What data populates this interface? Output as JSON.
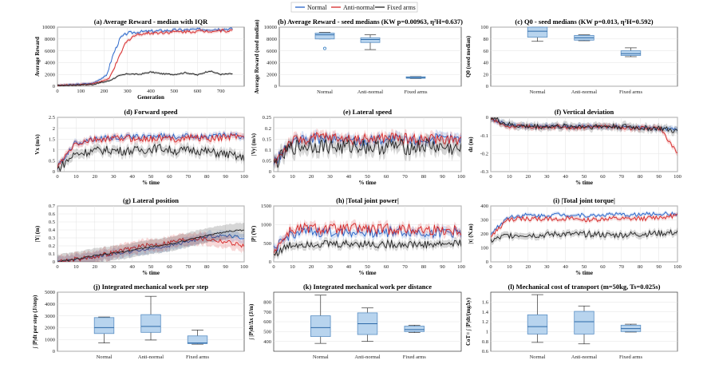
{
  "legend": {
    "items": [
      {
        "name": "Normal",
        "color": "#2563c9"
      },
      {
        "name": "Anti-normal",
        "color": "#d62828"
      },
      {
        "name": "Fixed arms",
        "color": "#222222"
      }
    ]
  },
  "chart_data": [
    {
      "id": "a",
      "type": "line",
      "title": "(a) Average Reward - median with IQR",
      "xlabel": "Generation",
      "ylabel": "Average Reward",
      "xlim": [
        0,
        800
      ],
      "ylim": [
        0,
        10000
      ],
      "xticks": [
        0,
        100,
        200,
        300,
        400,
        500,
        600,
        700
      ],
      "yticks": [
        0,
        2000,
        4000,
        6000,
        8000,
        10000
      ],
      "yticklabels": [
        "0",
        "2000",
        "4000",
        "6000",
        "8000",
        "10000"
      ],
      "series": [
        {
          "name": "Normal",
          "color": "#2563c9",
          "x": [
            0,
            150,
            210,
            240,
            270,
            300,
            350,
            400,
            500,
            600,
            700,
            750
          ],
          "y": [
            100,
            500,
            1800,
            5500,
            8200,
            9000,
            9200,
            9300,
            9500,
            9600,
            9700,
            9700
          ],
          "iqr": 500
        },
        {
          "name": "Anti-normal",
          "color": "#d62828",
          "x": [
            0,
            150,
            220,
            260,
            290,
            320,
            360,
            400,
            500,
            600,
            700,
            750
          ],
          "y": [
            100,
            400,
            1200,
            4500,
            7200,
            8400,
            8900,
            9000,
            9200,
            9300,
            9400,
            9400
          ],
          "iqr": 600
        },
        {
          "name": "Fixed arms",
          "color": "#222222",
          "x": [
            0,
            150,
            220,
            260,
            300,
            350,
            400,
            450,
            500,
            550,
            600,
            650,
            700,
            750
          ],
          "y": [
            100,
            300,
            900,
            1700,
            2100,
            2000,
            2400,
            2100,
            2000,
            2300,
            1900,
            2600,
            2000,
            2100
          ],
          "iqr": 400
        }
      ]
    },
    {
      "id": "b",
      "type": "box",
      "title": "(b) Average Reward - seed medians (KW p=0.00963, η²H=0.637)",
      "ylabel": "Average Reward (seed median)",
      "categories": [
        "Normal",
        "Anti-normal",
        "Fixed arms"
      ],
      "ylim": [
        0,
        10000
      ],
      "yticks": [
        0,
        2000,
        4000,
        6000,
        8000,
        10000
      ],
      "yticklabels": [
        "0",
        "2000",
        "4000",
        "6000",
        "8000",
        "10000"
      ],
      "boxes": [
        {
          "min": 8000,
          "q1": 8000,
          "median": 8700,
          "q3": 9000,
          "max": 9100,
          "outliers": [
            6400
          ]
        },
        {
          "min": 6200,
          "q1": 7400,
          "median": 7900,
          "q3": 8200,
          "max": 8700,
          "outliers": []
        },
        {
          "min": 1300,
          "q1": 1350,
          "median": 1450,
          "q3": 1600,
          "max": 1650,
          "outliers": []
        }
      ]
    },
    {
      "id": "c",
      "type": "box",
      "title": "(c) Q0 - seed medians (KW p=0.013, η²H=0.592)",
      "ylabel": "Q0 (seed median)",
      "categories": [
        "Normal",
        "Anti-normal",
        "Fixed arms"
      ],
      "ylim": [
        0,
        100
      ],
      "yticks": [
        0,
        20,
        40,
        60,
        80,
        100
      ],
      "yticklabels": [
        "0",
        "20",
        "40",
        "60",
        "80",
        "100"
      ],
      "boxes": [
        {
          "min": 76,
          "q1": 83,
          "median": 93,
          "q3": 100,
          "max": 100,
          "outliers": []
        },
        {
          "min": 77,
          "q1": 78,
          "median": 82,
          "q3": 86,
          "max": 87,
          "outliers": []
        },
        {
          "min": 50,
          "q1": 52,
          "median": 55,
          "q3": 60,
          "max": 65,
          "outliers": []
        }
      ]
    },
    {
      "id": "d",
      "type": "line",
      "title": "(d) Forward speed",
      "xlabel": "% time",
      "ylabel": "Vx (m/s)",
      "xlim": [
        0,
        100
      ],
      "ylim": [
        0,
        2.5
      ],
      "xticks": [
        0,
        10,
        20,
        30,
        40,
        50,
        60,
        70,
        80,
        90,
        100
      ],
      "yticks": [
        0,
        0.5,
        1,
        1.5,
        2,
        2.5
      ],
      "yticklabels": [
        "0",
        "0.5",
        "1",
        "1.5",
        "2",
        "2.5"
      ],
      "series": [
        {
          "name": "Normal",
          "color": "#2563c9",
          "base": [
            0.2,
            1.3,
            1.5,
            1.55,
            1.6,
            1.6,
            1.65,
            1.6,
            1.65,
            1.6,
            1.7,
            1.6
          ],
          "amp": 0.12,
          "iqr": 0.25
        },
        {
          "name": "Anti-normal",
          "color": "#d62828",
          "base": [
            0.2,
            1.25,
            1.45,
            1.5,
            1.55,
            1.5,
            1.55,
            1.5,
            1.6,
            1.5,
            1.6,
            1.7
          ],
          "amp": 0.15,
          "iqr": 0.3
        },
        {
          "name": "Fixed arms",
          "color": "#222222",
          "base": [
            0.1,
            0.8,
            0.95,
            1.0,
            0.95,
            1.0,
            1.1,
            0.95,
            1.0,
            0.9,
            0.8,
            0.6
          ],
          "amp": 0.2,
          "iqr": 0.4
        }
      ]
    },
    {
      "id": "e",
      "type": "line",
      "title": "(e) Lateral speed",
      "xlabel": "% time",
      "ylabel": "|Vy| (m/s)",
      "xlim": [
        0,
        100
      ],
      "ylim": [
        0,
        0.25
      ],
      "xticks": [
        0,
        10,
        20,
        30,
        40,
        50,
        60,
        70,
        80,
        90,
        100
      ],
      "yticks": [
        0,
        0.05,
        0.1,
        0.15,
        0.2,
        0.25
      ],
      "yticklabels": [
        "0",
        "0.05",
        "0.1",
        "0.15",
        "0.2",
        "0.25"
      ],
      "series": [
        {
          "name": "Normal",
          "color": "#2563c9",
          "base": [
            0.04,
            0.13,
            0.15,
            0.15,
            0.15,
            0.14,
            0.15,
            0.15,
            0.14,
            0.15,
            0.15,
            0.15
          ],
          "amp": 0.025,
          "iqr": 0.04
        },
        {
          "name": "Anti-normal",
          "color": "#d62828",
          "base": [
            0.04,
            0.14,
            0.15,
            0.16,
            0.15,
            0.15,
            0.15,
            0.16,
            0.15,
            0.15,
            0.15,
            0.14
          ],
          "amp": 0.025,
          "iqr": 0.04
        },
        {
          "name": "Fixed arms",
          "color": "#222222",
          "base": [
            0.03,
            0.11,
            0.12,
            0.12,
            0.11,
            0.12,
            0.11,
            0.12,
            0.11,
            0.12,
            0.11,
            0.1
          ],
          "amp": 0.035,
          "iqr": 0.06
        }
      ]
    },
    {
      "id": "f",
      "type": "line",
      "title": "(f) Vertical deviation",
      "xlabel": "% time",
      "ylabel": "dz (m)",
      "xlim": [
        0,
        100
      ],
      "ylim": [
        -0.3,
        0
      ],
      "xticks": [
        0,
        10,
        20,
        30,
        40,
        50,
        60,
        70,
        80,
        90,
        100
      ],
      "yticks": [
        -0.3,
        -0.2,
        -0.1,
        0
      ],
      "yticklabels": [
        "-0.3",
        "-0.2",
        "-0.1",
        "0"
      ],
      "series": [
        {
          "name": "Normal",
          "color": "#2563c9",
          "base": [
            -0.01,
            -0.04,
            -0.05,
            -0.05,
            -0.05,
            -0.05,
            -0.05,
            -0.05,
            -0.05,
            -0.06,
            -0.06,
            -0.07
          ],
          "amp": 0.01,
          "iqr": 0.03
        },
        {
          "name": "Anti-normal",
          "color": "#d62828",
          "base": [
            -0.01,
            -0.05,
            -0.05,
            -0.06,
            -0.05,
            -0.06,
            -0.05,
            -0.05,
            -0.06,
            -0.06,
            -0.06,
            -0.2
          ],
          "amp": 0.01,
          "iqr": 0.03
        },
        {
          "name": "Fixed arms",
          "color": "#222222",
          "base": [
            0,
            -0.04,
            -0.05,
            -0.05,
            -0.05,
            -0.05,
            -0.05,
            -0.05,
            -0.05,
            -0.06,
            -0.06,
            -0.08
          ],
          "amp": 0.015,
          "iqr": 0.04
        }
      ]
    },
    {
      "id": "g",
      "type": "line",
      "title": "(g) Lateral position",
      "xlabel": "% time",
      "ylabel": "|Y| (m)",
      "xlim": [
        0,
        100
      ],
      "ylim": [
        0,
        0.7
      ],
      "xticks": [
        0,
        10,
        20,
        30,
        40,
        50,
        60,
        70,
        80,
        90,
        100
      ],
      "yticks": [
        0,
        0.1,
        0.2,
        0.3,
        0.4,
        0.5,
        0.6,
        0.7
      ],
      "yticklabels": [
        "0",
        "0.1",
        "0.2",
        "0.3",
        "0.4",
        "0.5",
        "0.6",
        "0.7"
      ],
      "series": [
        {
          "name": "Normal",
          "color": "#2563c9",
          "base": [
            0,
            0.03,
            0.06,
            0.09,
            0.12,
            0.15,
            0.18,
            0.22,
            0.27,
            0.32,
            0.33,
            0.3
          ],
          "amp": 0.02,
          "iqr": 0.12
        },
        {
          "name": "Anti-normal",
          "color": "#d62828",
          "base": [
            0,
            0.03,
            0.06,
            0.1,
            0.15,
            0.2,
            0.22,
            0.26,
            0.3,
            0.28,
            0.25,
            0.2
          ],
          "amp": 0.03,
          "iqr": 0.15
        },
        {
          "name": "Fixed arms",
          "color": "#222222",
          "base": [
            0,
            0.03,
            0.07,
            0.1,
            0.13,
            0.17,
            0.2,
            0.24,
            0.29,
            0.34,
            0.38,
            0.4
          ],
          "amp": 0.01,
          "iqr": 0.18
        }
      ]
    },
    {
      "id": "h",
      "type": "line",
      "title": "(h) |Total joint power|",
      "xlabel": "% time",
      "ylabel": "|P| (W)",
      "xlim": [
        0,
        100
      ],
      "ylim": [
        0,
        1500
      ],
      "xticks": [
        0,
        10,
        20,
        30,
        40,
        50,
        60,
        70,
        80,
        90,
        100
      ],
      "yticks": [
        0,
        500,
        1000,
        1500
      ],
      "yticklabels": [
        "0",
        "500",
        "1000",
        "1500"
      ],
      "series": [
        {
          "name": "Normal",
          "color": "#2563c9",
          "base": [
            300,
            750,
            800,
            780,
            820,
            800,
            790,
            810,
            800,
            780,
            800,
            790
          ],
          "amp": 140,
          "iqr": 200
        },
        {
          "name": "Anti-normal",
          "color": "#d62828",
          "base": [
            300,
            850,
            900,
            880,
            870,
            900,
            860,
            880,
            870,
            850,
            860,
            840
          ],
          "amp": 150,
          "iqr": 220
        },
        {
          "name": "Fixed arms",
          "color": "#222222",
          "base": [
            200,
            450,
            500,
            480,
            470,
            500,
            460,
            480,
            470,
            460,
            480,
            500
          ],
          "amp": 110,
          "iqr": 200
        }
      ]
    },
    {
      "id": "i",
      "type": "line",
      "title": "(i) |Total joint torque|",
      "xlabel": "% time",
      "ylabel": "|τ| (N.m)",
      "xlim": [
        0,
        100
      ],
      "ylim": [
        0,
        400
      ],
      "xticks": [
        0,
        10,
        20,
        30,
        40,
        50,
        60,
        70,
        80,
        90,
        100
      ],
      "yticks": [
        0,
        100,
        200,
        300,
        400
      ],
      "yticklabels": [
        "0",
        "100",
        "200",
        "300",
        "400"
      ],
      "series": [
        {
          "name": "Normal",
          "color": "#2563c9",
          "base": [
            200,
            320,
            335,
            330,
            340,
            335,
            330,
            340,
            335,
            340,
            345,
            340
          ],
          "amp": 14,
          "iqr": 25
        },
        {
          "name": "Anti-normal",
          "color": "#d62828",
          "base": [
            180,
            300,
            310,
            305,
            310,
            305,
            300,
            310,
            305,
            310,
            320,
            330
          ],
          "amp": 16,
          "iqr": 30
        },
        {
          "name": "Fixed arms",
          "color": "#222222",
          "base": [
            150,
            190,
            195,
            190,
            200,
            195,
            200,
            190,
            195,
            200,
            205,
            210
          ],
          "amp": 22,
          "iqr": 45
        }
      ]
    },
    {
      "id": "j",
      "type": "box",
      "title": "(j) Integrated mechanical work per step",
      "ylabel": "∫ |P|dt per step (J/step)",
      "categories": [
        "Normal",
        "Anti-normal",
        "Fixed arms"
      ],
      "ylim": [
        0,
        5000
      ],
      "yticks": [
        0,
        1000,
        2000,
        3000,
        4000,
        5000
      ],
      "yticklabels": [
        "0",
        "1000",
        "2000",
        "3000",
        "4000",
        "5000"
      ],
      "boxes": [
        {
          "min": 700,
          "q1": 1500,
          "median": 2000,
          "q3": 2850,
          "max": 2900,
          "outliers": []
        },
        {
          "min": 950,
          "q1": 1600,
          "median": 2100,
          "q3": 3100,
          "max": 4650,
          "outliers": []
        },
        {
          "min": 600,
          "q1": 650,
          "median": 700,
          "q3": 1300,
          "max": 1800,
          "outliers": []
        }
      ]
    },
    {
      "id": "k",
      "type": "box",
      "title": "(k) Integrated mechanical work per distance",
      "ylabel": "∫ |P|dt/Δx (J/m)",
      "categories": [
        "Normal",
        "Anti-normal",
        "Fixed arms"
      ],
      "ylim": [
        300,
        900
      ],
      "yticks": [
        400,
        500,
        600,
        700,
        800
      ],
      "yticklabels": [
        "400",
        "500",
        "600",
        "700",
        "800"
      ],
      "boxes": [
        {
          "min": 380,
          "q1": 450,
          "median": 540,
          "q3": 660,
          "max": 870,
          "outliers": []
        },
        {
          "min": 400,
          "q1": 470,
          "median": 580,
          "q3": 690,
          "max": 740,
          "outliers": []
        },
        {
          "min": 490,
          "q1": 500,
          "median": 520,
          "q3": 555,
          "max": 565,
          "outliers": []
        }
      ]
    },
    {
      "id": "l",
      "type": "box",
      "title": "(l) Mechanical cost of transport (m=50kg, Ts=0.025s)",
      "ylabel": "CoT= ∫ |P|dt/(mgΔy)",
      "categories": [
        "Normal",
        "Anti-normal",
        "Fixed arms"
      ],
      "ylim": [
        0.6,
        1.8
      ],
      "yticks": [
        0.6,
        0.8,
        1,
        1.2,
        1.4,
        1.6
      ],
      "yticklabels": [
        "0.6",
        "0.8",
        "1",
        "1.2",
        "1.4",
        "1.6"
      ],
      "boxes": [
        {
          "min": 0.78,
          "q1": 0.95,
          "median": 1.1,
          "q3": 1.34,
          "max": 1.75,
          "outliers": []
        },
        {
          "min": 0.75,
          "q1": 0.95,
          "median": 1.2,
          "q3": 1.41,
          "max": 1.52,
          "outliers": []
        },
        {
          "min": 0.99,
          "q1": 1.0,
          "median": 1.06,
          "q3": 1.13,
          "max": 1.15,
          "outliers": []
        }
      ]
    }
  ]
}
